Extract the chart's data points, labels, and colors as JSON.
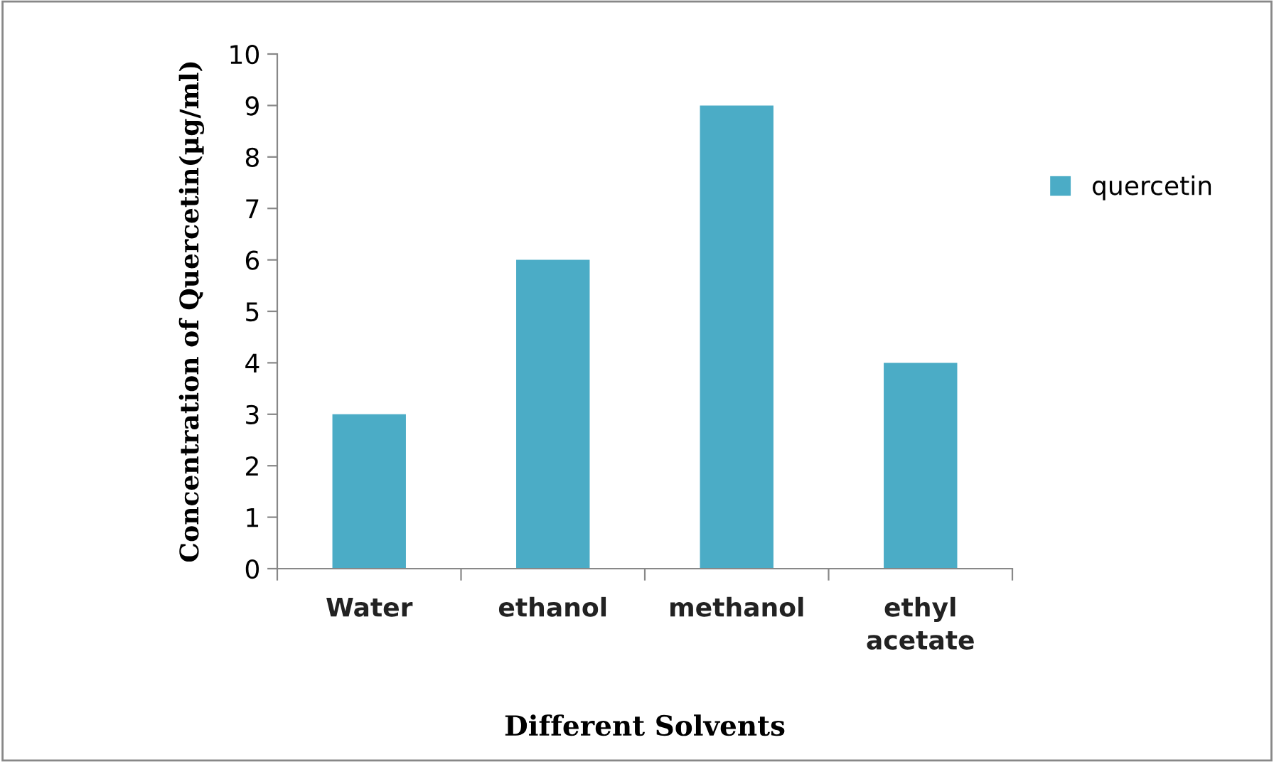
{
  "chart_data": {
    "type": "bar",
    "xlabel": "Different Solvents",
    "ylabel": "Concentration of Quercetin(µg/ml)",
    "categories": [
      "Water",
      "ethanol",
      "methanol",
      "ethyl\nacetate"
    ],
    "series": [
      {
        "name": "quercetin",
        "color": "#4bacc6",
        "values": [
          3,
          6,
          9,
          4
        ]
      }
    ],
    "ylim": [
      0,
      10
    ],
    "yticks": [
      0,
      1,
      2,
      3,
      4,
      5,
      6,
      7,
      8,
      9,
      10
    ],
    "grid": false,
    "legend": "right"
  }
}
